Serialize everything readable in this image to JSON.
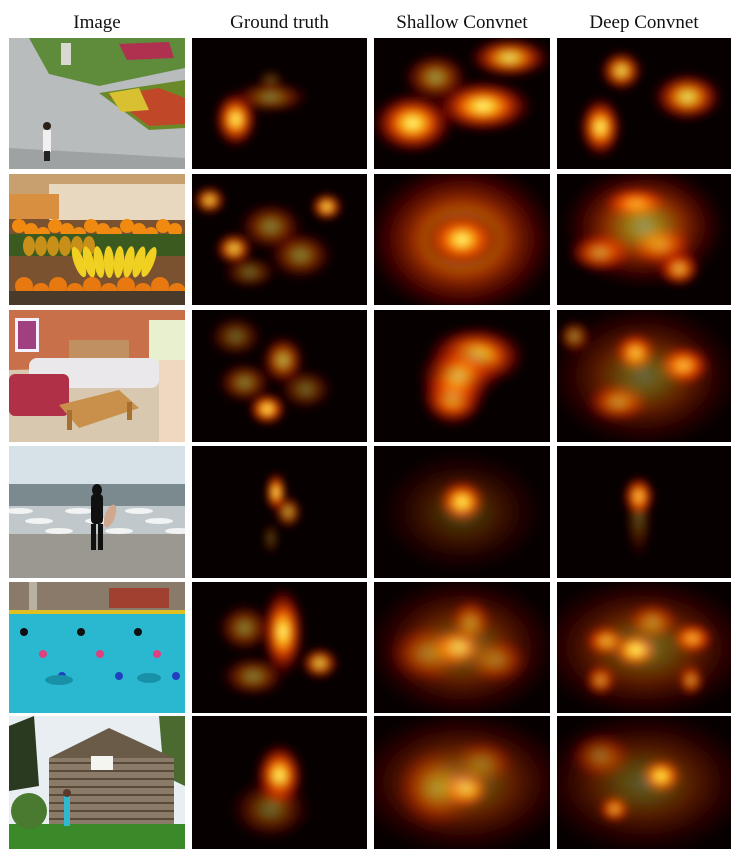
{
  "columns": {
    "image": "Image",
    "ground_truth": "Ground truth",
    "shallow": "Shallow Convnet",
    "deep": "Deep Convnet"
  },
  "colors": {
    "background": "#ffffff",
    "heatmap_low": "#000000",
    "heatmap_mid": "#c81400",
    "heatmap_high": "#ffff90"
  },
  "rows": [
    {
      "scene": "plaza",
      "ground_truth": [
        [
          0.25,
          0.62,
          0.08,
          0.14,
          1.0
        ],
        [
          0.45,
          0.45,
          0.14,
          0.08,
          0.5
        ],
        [
          0.45,
          0.32,
          0.05,
          0.05,
          0.3
        ]
      ],
      "shallow": [
        [
          0.22,
          0.65,
          0.15,
          0.15,
          1.0
        ],
        [
          0.62,
          0.52,
          0.18,
          0.13,
          1.0
        ],
        [
          0.35,
          0.3,
          0.12,
          0.12,
          0.6
        ],
        [
          0.77,
          0.15,
          0.15,
          0.1,
          0.9
        ]
      ],
      "deep": [
        [
          0.25,
          0.68,
          0.08,
          0.15,
          1.0
        ],
        [
          0.37,
          0.25,
          0.08,
          0.1,
          0.9
        ],
        [
          0.75,
          0.45,
          0.13,
          0.12,
          0.9
        ]
      ]
    },
    {
      "scene": "fruit",
      "ground_truth": [
        [
          0.1,
          0.2,
          0.06,
          0.07,
          0.9
        ],
        [
          0.77,
          0.25,
          0.06,
          0.07,
          0.95
        ],
        [
          0.24,
          0.57,
          0.07,
          0.08,
          0.9
        ],
        [
          0.45,
          0.4,
          0.12,
          0.12,
          0.5
        ],
        [
          0.62,
          0.62,
          0.12,
          0.12,
          0.5
        ],
        [
          0.33,
          0.75,
          0.1,
          0.08,
          0.4
        ]
      ],
      "shallow": [
        [
          0.5,
          0.5,
          0.35,
          0.38,
          0.7
        ],
        [
          0.5,
          0.5,
          0.14,
          0.14,
          1.0
        ]
      ],
      "deep": [
        [
          0.45,
          0.22,
          0.12,
          0.08,
          1.0
        ],
        [
          0.25,
          0.6,
          0.12,
          0.1,
          0.9
        ],
        [
          0.6,
          0.55,
          0.12,
          0.1,
          0.8
        ],
        [
          0.7,
          0.72,
          0.08,
          0.09,
          1.0
        ],
        [
          0.5,
          0.4,
          0.3,
          0.3,
          0.6
        ]
      ]
    },
    {
      "scene": "living-room",
      "ground_truth": [
        [
          0.43,
          0.75,
          0.07,
          0.08,
          1.0
        ],
        [
          0.52,
          0.38,
          0.08,
          0.12,
          0.7
        ],
        [
          0.3,
          0.55,
          0.1,
          0.1,
          0.5
        ],
        [
          0.25,
          0.2,
          0.1,
          0.1,
          0.4
        ],
        [
          0.65,
          0.6,
          0.1,
          0.1,
          0.4
        ]
      ],
      "shallow": [
        [
          0.45,
          0.65,
          0.12,
          0.15,
          1.0
        ],
        [
          0.58,
          0.35,
          0.18,
          0.15,
          0.95
        ],
        [
          0.48,
          0.5,
          0.15,
          0.15,
          0.7
        ]
      ],
      "deep": [
        [
          0.45,
          0.32,
          0.08,
          0.1,
          0.95
        ],
        [
          0.73,
          0.42,
          0.1,
          0.1,
          1.0
        ],
        [
          0.35,
          0.7,
          0.12,
          0.1,
          0.7
        ],
        [
          0.1,
          0.2,
          0.06,
          0.08,
          0.6
        ],
        [
          0.5,
          0.5,
          0.35,
          0.35,
          0.4
        ]
      ]
    },
    {
      "scene": "beach",
      "ground_truth": [
        [
          0.48,
          0.35,
          0.04,
          0.1,
          1.0
        ],
        [
          0.55,
          0.5,
          0.05,
          0.08,
          0.7
        ],
        [
          0.45,
          0.7,
          0.03,
          0.08,
          0.3
        ]
      ],
      "shallow": [
        [
          0.5,
          0.42,
          0.09,
          0.11,
          1.0
        ],
        [
          0.5,
          0.5,
          0.3,
          0.3,
          0.25
        ]
      ],
      "deep": [
        [
          0.47,
          0.38,
          0.06,
          0.1,
          1.0
        ],
        [
          0.47,
          0.55,
          0.05,
          0.2,
          0.3
        ]
      ]
    },
    {
      "scene": "pool",
      "ground_truth": [
        [
          0.52,
          0.38,
          0.08,
          0.22,
          1.0
        ],
        [
          0.3,
          0.35,
          0.1,
          0.12,
          0.5
        ],
        [
          0.73,
          0.62,
          0.07,
          0.08,
          0.85
        ],
        [
          0.35,
          0.72,
          0.12,
          0.1,
          0.5
        ]
      ],
      "shallow": [
        [
          0.47,
          0.5,
          0.1,
          0.1,
          1.0
        ],
        [
          0.55,
          0.3,
          0.08,
          0.12,
          0.6
        ],
        [
          0.3,
          0.55,
          0.15,
          0.15,
          0.5
        ],
        [
          0.7,
          0.6,
          0.12,
          0.12,
          0.5
        ],
        [
          0.5,
          0.5,
          0.35,
          0.35,
          0.4
        ]
      ],
      "deep": [
        [
          0.45,
          0.52,
          0.09,
          0.09,
          1.0
        ],
        [
          0.78,
          0.43,
          0.08,
          0.08,
          0.95
        ],
        [
          0.28,
          0.45,
          0.08,
          0.08,
          0.85
        ],
        [
          0.55,
          0.3,
          0.1,
          0.1,
          0.6
        ],
        [
          0.25,
          0.75,
          0.06,
          0.08,
          0.8
        ],
        [
          0.77,
          0.75,
          0.05,
          0.08,
          0.8
        ],
        [
          0.5,
          0.5,
          0.4,
          0.35,
          0.4
        ]
      ]
    },
    {
      "scene": "cabin",
      "ground_truth": [
        [
          0.5,
          0.45,
          0.09,
          0.16,
          1.0
        ],
        [
          0.45,
          0.7,
          0.15,
          0.15,
          0.4
        ]
      ],
      "shallow": [
        [
          0.52,
          0.55,
          0.09,
          0.1,
          1.0
        ],
        [
          0.35,
          0.55,
          0.15,
          0.2,
          0.5
        ],
        [
          0.62,
          0.35,
          0.12,
          0.12,
          0.4
        ],
        [
          0.5,
          0.5,
          0.4,
          0.35,
          0.4
        ]
      ],
      "deep": [
        [
          0.6,
          0.45,
          0.08,
          0.09,
          1.0
        ],
        [
          0.33,
          0.7,
          0.06,
          0.07,
          0.85
        ],
        [
          0.25,
          0.3,
          0.12,
          0.12,
          0.5
        ],
        [
          0.5,
          0.5,
          0.4,
          0.35,
          0.35
        ]
      ]
    }
  ]
}
